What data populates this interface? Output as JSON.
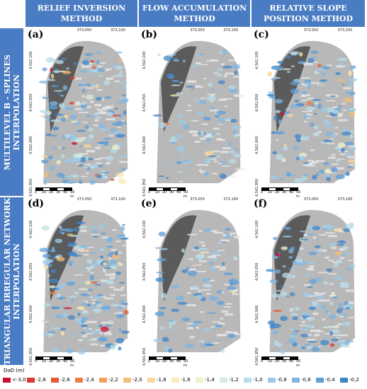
{
  "columns": [
    {
      "line1": "RELIEF INVERSION",
      "line2": "METHOD"
    },
    {
      "line1": "FLOW ACCUMULATION",
      "line2": "METHOD"
    },
    {
      "line1": "RELATIVE SLOPE",
      "line2": "POSITION METHOD"
    }
  ],
  "rows": [
    {
      "line1": "MULTILEVEL B - SPLINES",
      "line2": "INTERPOLATION"
    },
    {
      "line1": "TRIANGULAR IRREGULAR NETWORK",
      "line2": "INTERPOLATION"
    }
  ],
  "panels": [
    {
      "label": "(a)",
      "density": 1.0
    },
    {
      "label": "(b)",
      "density": 0.35
    },
    {
      "label": "(c)",
      "density": 0.75
    },
    {
      "label": "(d)",
      "density": 0.95
    },
    {
      "label": "(e)",
      "density": 0.25
    },
    {
      "label": "(f)",
      "density": 0.7
    }
  ],
  "axes": {
    "x_ticks": [
      "373,050",
      "373,100"
    ],
    "y_ticks": [
      "4,562,100",
      "4,562,050",
      "4,562,000",
      "4,561,950"
    ],
    "scale_labels": [
      "0",
      "10",
      "20",
      "30",
      "40",
      "50 m"
    ]
  },
  "legend": {
    "title": "DoD (m)",
    "items": [
      {
        "label": "<-3,0",
        "color": "#c8102e"
      },
      {
        "label": "-2,8",
        "color": "#d9382a"
      },
      {
        "label": "-2,6",
        "color": "#e45c33"
      },
      {
        "label": "-2,4",
        "color": "#ec7e45"
      },
      {
        "label": "-2,2",
        "color": "#f29f5e"
      },
      {
        "label": "-2,0",
        "color": "#f6bd7b"
      },
      {
        "label": "-1,8",
        "color": "#f9d798"
      },
      {
        "label": "-1,6",
        "color": "#faeab3"
      },
      {
        "label": "-1,4",
        "color": "#eef3cd"
      },
      {
        "label": "-1,2",
        "color": "#d6ebe0"
      },
      {
        "label": "-1,0",
        "color": "#b9ddea"
      },
      {
        "label": "-0,8",
        "color": "#9ccbe9"
      },
      {
        "label": "-0,6",
        "color": "#7eb6e2"
      },
      {
        "label": "-0,4",
        "color": "#5f9fd8"
      },
      {
        "label": "-0,2",
        "color": "#3f86c9"
      }
    ]
  }
}
